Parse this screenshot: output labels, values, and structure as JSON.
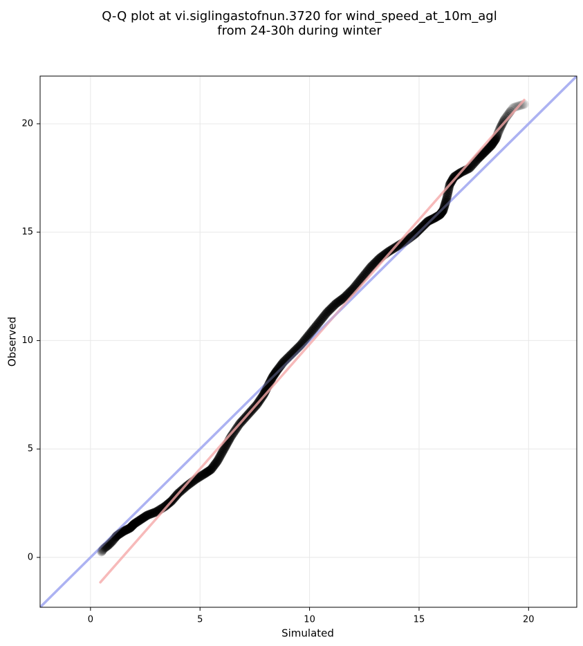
{
  "chart_data": {
    "type": "scatter",
    "title_line1": "Q-Q plot at vi.siglingastofnun.3720 for wind_speed_at_10m_agl",
    "title_line2": "from 24-30h during winter",
    "xlabel": "Simulated",
    "ylabel": "Observed",
    "xlim": [
      -2.3,
      22.2
    ],
    "ylim": [
      -2.3,
      22.2
    ],
    "xticks": [
      0,
      5,
      10,
      15,
      20
    ],
    "yticks": [
      0,
      5,
      10,
      15,
      20
    ],
    "grid": true,
    "reference_line": {
      "slope": 1,
      "intercept": 0,
      "color": "#aab0f2"
    },
    "fit_line": {
      "x": [
        0.45,
        19.8
      ],
      "y": [
        -1.15,
        21.1
      ],
      "color": "#f5a9a9"
    },
    "point_color": "#000000",
    "quantiles": {
      "x": [
        0.5,
        0.6,
        0.8,
        1.0,
        1.2,
        1.5,
        1.8,
        2.0,
        2.3,
        2.6,
        3.0,
        3.4,
        3.7,
        4.0,
        4.4,
        4.8,
        5.2,
        5.5,
        5.8,
        6.1,
        6.4,
        6.8,
        7.2,
        7.6,
        7.9,
        8.1,
        8.3,
        8.5,
        8.8,
        9.2,
        9.6,
        10.0,
        10.4,
        10.8,
        11.2,
        11.6,
        12.0,
        12.4,
        12.8,
        13.2,
        13.6,
        14.0,
        14.4,
        14.8,
        15.1,
        15.4,
        15.7,
        15.95,
        16.1,
        16.25,
        16.4,
        16.6,
        16.9,
        17.3,
        17.7,
        18.0,
        18.3,
        18.5,
        18.7,
        18.9,
        19.3,
        19.8
      ],
      "y": [
        0.25,
        0.4,
        0.55,
        0.75,
        1.0,
        1.2,
        1.35,
        1.55,
        1.75,
        1.95,
        2.1,
        2.35,
        2.6,
        2.95,
        3.3,
        3.6,
        3.85,
        4.05,
        4.45,
        5.0,
        5.55,
        6.15,
        6.6,
        7.05,
        7.5,
        7.9,
        8.3,
        8.6,
        9.0,
        9.4,
        9.8,
        10.3,
        10.8,
        11.3,
        11.7,
        12.0,
        12.4,
        12.9,
        13.4,
        13.8,
        14.1,
        14.35,
        14.6,
        14.9,
        15.2,
        15.5,
        15.65,
        15.8,
        16.0,
        16.5,
        17.2,
        17.55,
        17.75,
        17.95,
        18.4,
        18.7,
        19.0,
        19.3,
        19.8,
        20.2,
        20.75,
        20.9
      ]
    }
  }
}
